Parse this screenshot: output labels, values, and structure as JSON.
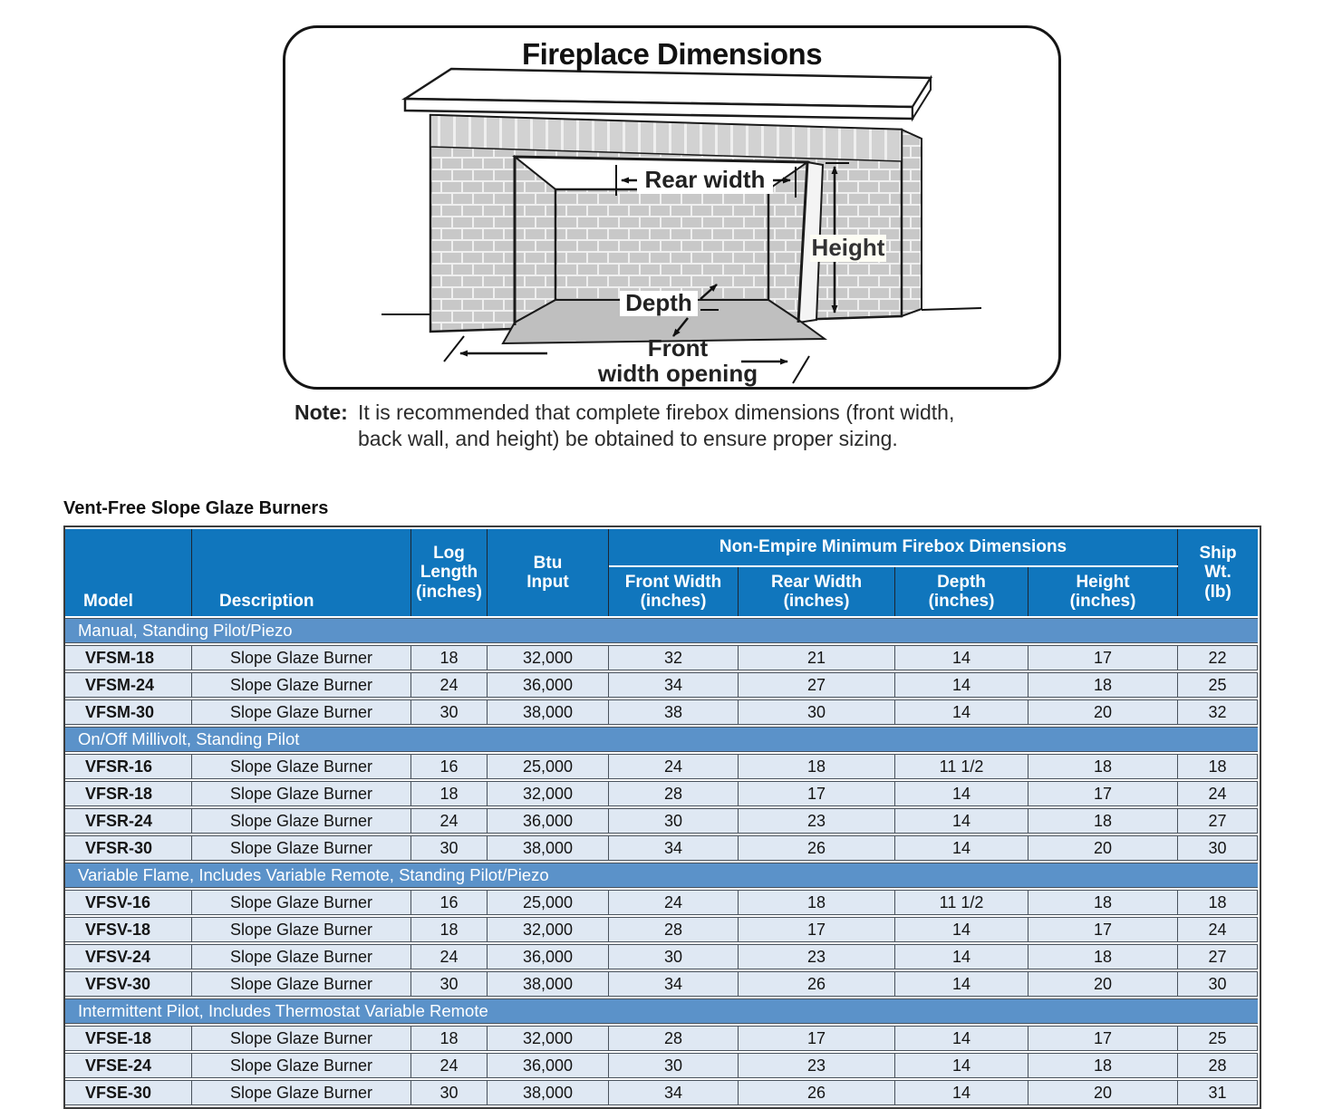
{
  "diagram": {
    "title": "Fireplace Dimensions",
    "labels": {
      "rear_width": "Rear width",
      "height": "Height",
      "depth": "Depth",
      "front_line1": "Front",
      "front_line2": "width opening"
    }
  },
  "note": {
    "label": "Note:",
    "text": "It is recommended that complete firebox dimensions (front width,\nback wall, and height) be obtained to ensure proper sizing."
  },
  "table": {
    "title": "Vent-Free Slope Glaze Burners",
    "header": {
      "model": "Model",
      "description": "Description",
      "log_length": "Log\nLength\n(inches)",
      "btu_input": "Btu\nInput",
      "group": "Non-Empire Minimum Firebox Dimensions",
      "front_width": "Front Width\n(inches)",
      "rear_width": "Rear Width\n(inches)",
      "depth": "Depth\n(inches)",
      "height": "Height\n(inches)",
      "ship_wt": "Ship\nWt.\n(lb)"
    },
    "sections": [
      {
        "label": "Manual, Standing Pilot/Piezo",
        "rows": [
          [
            "VFSM-18",
            "Slope Glaze Burner",
            "18",
            "32,000",
            "32",
            "21",
            "14",
            "17",
            "22"
          ],
          [
            "VFSM-24",
            "Slope Glaze Burner",
            "24",
            "36,000",
            "34",
            "27",
            "14",
            "18",
            "25"
          ],
          [
            "VFSM-30",
            "Slope Glaze Burner",
            "30",
            "38,000",
            "38",
            "30",
            "14",
            "20",
            "32"
          ]
        ]
      },
      {
        "label": "On/Off Millivolt, Standing Pilot",
        "rows": [
          [
            "VFSR-16",
            "Slope Glaze Burner",
            "16",
            "25,000",
            "24",
            "18",
            "11 1/2",
            "18",
            "18"
          ],
          [
            "VFSR-18",
            "Slope Glaze Burner",
            "18",
            "32,000",
            "28",
            "17",
            "14",
            "17",
            "24"
          ],
          [
            "VFSR-24",
            "Slope Glaze Burner",
            "24",
            "36,000",
            "30",
            "23",
            "14",
            "18",
            "27"
          ],
          [
            "VFSR-30",
            "Slope Glaze Burner",
            "30",
            "38,000",
            "34",
            "26",
            "14",
            "20",
            "30"
          ]
        ]
      },
      {
        "label": "Variable Flame, Includes Variable Remote, Standing Pilot/Piezo",
        "rows": [
          [
            "VFSV-16",
            "Slope Glaze Burner",
            "16",
            "25,000",
            "24",
            "18",
            "11 1/2",
            "18",
            "18"
          ],
          [
            "VFSV-18",
            "Slope Glaze Burner",
            "18",
            "32,000",
            "28",
            "17",
            "14",
            "17",
            "24"
          ],
          [
            "VFSV-24",
            "Slope Glaze Burner",
            "24",
            "36,000",
            "30",
            "23",
            "14",
            "18",
            "27"
          ],
          [
            "VFSV-30",
            "Slope Glaze Burner",
            "30",
            "38,000",
            "34",
            "26",
            "14",
            "20",
            "30"
          ]
        ]
      },
      {
        "label": "Intermittent Pilot, Includes Thermostat Variable Remote",
        "rows": [
          [
            "VFSE-18",
            "Slope Glaze Burner",
            "18",
            "32,000",
            "28",
            "17",
            "14",
            "17",
            "25"
          ],
          [
            "VFSE-24",
            "Slope Glaze Burner",
            "24",
            "36,000",
            "30",
            "23",
            "14",
            "18",
            "28"
          ],
          [
            "VFSE-30",
            "Slope Glaze Burner",
            "30",
            "38,000",
            "34",
            "26",
            "14",
            "20",
            "31"
          ]
        ]
      }
    ]
  },
  "colors": {
    "header_blue": "#1076bd",
    "section_blue": "#5b92c9",
    "row_light_blue": "#dfe8f3",
    "table_border": "#3c3c3c",
    "floor_gray": "#bfbfbf",
    "brick_gray": "#c8c8c8"
  }
}
